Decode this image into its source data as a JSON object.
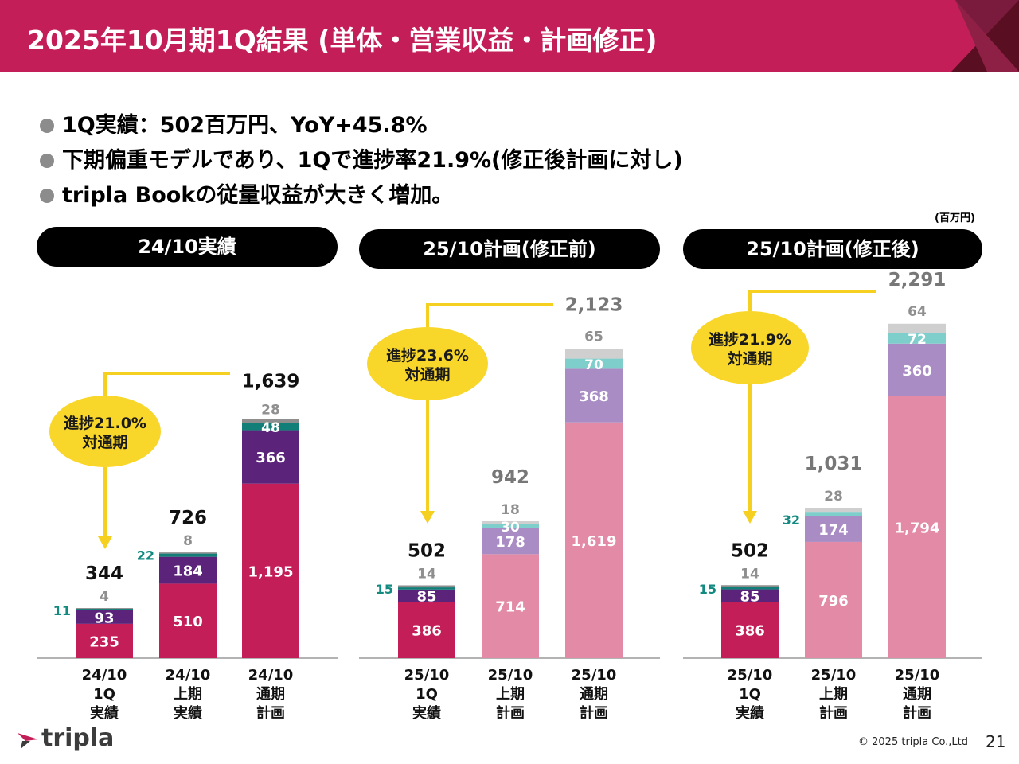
{
  "header": {
    "title": "2025年10月期1Q結果 (単体・営業収益・計画修正)"
  },
  "bullets": [
    "1Q実績：502百万円、YoY+45.8%",
    "下期偏重モデルであり、1Qで進捗率21.9%(修正後計画に対し)",
    "tripla Bookの従量収益が大きく増加。"
  ],
  "unit": "(百万円)",
  "colors": {
    "header": "#c41e58",
    "yellow": "#f5d020",
    "bubble": "#f8d62a",
    "label_teal": "#138a80",
    "label_gray": "#8f8f8f"
  },
  "chart_data": [
    {
      "type": "bar",
      "stacked": true,
      "title": "24/10実績",
      "categories": [
        "24/10\n1Q\n実績",
        "24/10\n上期\n実績",
        "24/10\n通期\n計画"
      ],
      "totals": [
        "344",
        "726",
        "1,639"
      ],
      "series": [
        {
          "name": "segment1",
          "color": "#c41e58",
          "values": [
            235,
            510,
            1195
          ],
          "labels": [
            "235",
            "510",
            "1,195"
          ]
        },
        {
          "name": "segment2",
          "color": "#5b237a",
          "values": [
            93,
            184,
            366
          ],
          "labels": [
            "93",
            "184",
            "366"
          ]
        },
        {
          "name": "segment3",
          "color": "#127e78",
          "values": [
            11,
            22,
            48
          ],
          "labels": [
            "11",
            "22",
            "48"
          ]
        },
        {
          "name": "segment4",
          "color": "#8e8e8e",
          "values": [
            4,
            8,
            28
          ],
          "labels": [
            "4",
            "8",
            "28"
          ]
        }
      ],
      "callout": "進捗21.0%\n対通期"
    },
    {
      "type": "bar",
      "stacked": true,
      "title": "25/10計画(修正前)",
      "categories": [
        "25/10\n1Q\n実績",
        "25/10\n上期\n計画",
        "25/10\n通期\n計画"
      ],
      "totals": [
        "502",
        "942",
        "2,123"
      ],
      "series": [
        {
          "name": "segment1",
          "color": "#c41e58",
          "values": [
            386,
            714,
            1619
          ],
          "labels": [
            "386",
            "714",
            "1,619"
          ]
        },
        {
          "name": "segment2",
          "color": "#5b237a",
          "values": [
            85,
            178,
            368
          ],
          "labels": [
            "85",
            "178",
            "368"
          ]
        },
        {
          "name": "segment3",
          "color": "#127e78",
          "values": [
            15,
            30,
            70
          ],
          "labels": [
            "15",
            "30",
            "70"
          ]
        },
        {
          "name": "segment4",
          "color": "#8e8e8e",
          "values": [
            14,
            18,
            65
          ],
          "labels": [
            "14",
            "18",
            "65"
          ]
        }
      ],
      "callout": "進捗23.6%\n対通期"
    },
    {
      "type": "bar",
      "stacked": true,
      "title": "25/10計画(修正後)",
      "categories": [
        "25/10\n1Q\n実績",
        "25/10\n上期\n計画",
        "25/10\n通期\n計画"
      ],
      "totals": [
        "502",
        "1,031",
        "2,291"
      ],
      "series": [
        {
          "name": "segment1",
          "color": "#c41e58",
          "values": [
            386,
            796,
            1794
          ],
          "labels": [
            "386",
            "796",
            "1,794"
          ]
        },
        {
          "name": "segment2",
          "color": "#5b237a",
          "values": [
            85,
            174,
            360
          ],
          "labels": [
            "85",
            "174",
            "360"
          ]
        },
        {
          "name": "segment3",
          "color": "#127e78",
          "values": [
            15,
            32,
            72
          ],
          "labels": [
            "15",
            "32",
            "72"
          ]
        },
        {
          "name": "segment4",
          "color": "#8e8e8e",
          "values": [
            14,
            28,
            64
          ],
          "labels": [
            "14",
            "28",
            "64"
          ]
        }
      ],
      "callout": "進捗21.9%\n対通期"
    }
  ],
  "footer": {
    "logo": "tripla",
    "copyright": "© 2025 tripla Co.,Ltd",
    "page": "21"
  }
}
